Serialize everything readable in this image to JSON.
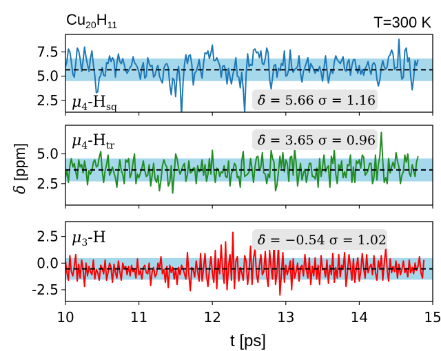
{
  "figure": {
    "title_left_main": "Cu",
    "title_left_sub1": "20",
    "title_left_mid": "H",
    "title_left_sub2": "11",
    "title_right": "T=300 K",
    "ylabel_delta": "δ",
    "ylabel_unit": "[ppm]",
    "xlabel": "t [ps]",
    "band_color": "#a6d8ec",
    "mean_line_color": "#000000"
  },
  "chart_data": [
    {
      "type": "line",
      "label_main": "μ",
      "label_sub": "4",
      "label_rest": "-H",
      "label_subscript": "sq",
      "stat_delta": "δ̄",
      "stat_text": " = 5.66 σ = 1.16",
      "mean": 5.66,
      "sigma": 1.16,
      "color": "#1f77b4",
      "ylim": [
        1.3,
        9.3
      ],
      "yticks": [
        2.5,
        5.0,
        7.5
      ],
      "ytick_labels": [
        "2.5",
        "5.0",
        "7.5"
      ],
      "xlim": [
        10,
        15
      ],
      "x_start": 10.0,
      "x_step": 0.02,
      "values": [
        6.0,
        6.5,
        7.8,
        7.5,
        6.5,
        5.2,
        4.9,
        6.3,
        7.9,
        7.6,
        6.8,
        5.5,
        6.6,
        8.0,
        7.0,
        6.2,
        5.5,
        6.8,
        7.6,
        6.2,
        5.1,
        3.3,
        3.4,
        4.8,
        5.1,
        5.9,
        5.1,
        5.0,
        6.4,
        6.3,
        7.1,
        6.5,
        6.9,
        6.6,
        4.9,
        6.3,
        7.3,
        6.5,
        6.3,
        6.8,
        6.2,
        5.6,
        5.3,
        5.6,
        5.9,
        6.1,
        7.0,
        6.4,
        6.2,
        5.9,
        5.4,
        4.7,
        5.9,
        6.4,
        4.8,
        5.0,
        6.9,
        6.3,
        6.0,
        6.1,
        4.9,
        5.1,
        5.8,
        6.1,
        5.0,
        4.6,
        4.3,
        5.8,
        6.2,
        6.3,
        5.9,
        4.1,
        3.1,
        4.8,
        4.6,
        2.9,
        5.2,
        6.0,
        4.4,
        1.0,
        4.3,
        6.2,
        7.2,
        6.3,
        7.1,
        7.2,
        6.2,
        4.1,
        5.3,
        5.5,
        6.0,
        6.7,
        5.6,
        4.8,
        6.3,
        7.4,
        7.3,
        7.6,
        6.8,
        7.4,
        8.2,
        6.6,
        6.6,
        6.9,
        6.5,
        6.1,
        4.9,
        6.0,
        6.1,
        5.6,
        4.2,
        5.8,
        4.9,
        4.2,
        5.2,
        5.8,
        6.9,
        5.0,
        4.9,
        3.8,
        5.4,
        3.7,
        1.3,
        5.2,
        7.3,
        6.0,
        6.2,
        6.1,
        7.7,
        7.8,
        7.4,
        7.5,
        6.9,
        7.6,
        6.3,
        6.2,
        6.8,
        7.9,
        7.4,
        4.7,
        3.7,
        4.9,
        6.1,
        6.2,
        4.9,
        5.8,
        5.6,
        6.3,
        6.1,
        7.6,
        5.0,
        5.1,
        5.7,
        7.7,
        5.9,
        5.4,
        5.7,
        5.8,
        6.0,
        7.1,
        5.3,
        4.4,
        5.5,
        5.9,
        6.4,
        6.9,
        5.4,
        6.3,
        6.0,
        5.7,
        5.3,
        5.7,
        5.5,
        6.0,
        5.4,
        4.5,
        5.8,
        7.1,
        5.7,
        4.3,
        5.2,
        5.7,
        5.3,
        6.5,
        7.1,
        6.7,
        6.5,
        6.3,
        6.6,
        7.0,
        5.7,
        5.5,
        6.4,
        6.7,
        5.1,
        6.1,
        6.7,
        6.7,
        5.8,
        5.3,
        6.1,
        5.2,
        5.7,
        5.1,
        5.7,
        6.1,
        6.5,
        5.7,
        5.2,
        6.2,
        6.4,
        6.1,
        4.7,
        4.0,
        4.6,
        5.9,
        6.6,
        6.0,
        5.7,
        6.0,
        7.0,
        7.2,
        7.7,
        7.3,
        5.7,
        5.9,
        5.9,
        8.8,
        6.0,
        4.7,
        4.9,
        7.6,
        7.9,
        6.5,
        6.9,
        5.0,
        3.6,
        4.8,
        6.6,
        6.1,
        6.7
      ]
    },
    {
      "type": "line",
      "label_main": "μ",
      "label_sub": "4",
      "label_rest": "-H",
      "label_subscript": "tr",
      "stat_delta": "δ̄",
      "stat_text": " = 3.65 σ = 0.96",
      "mean": 3.65,
      "sigma": 0.96,
      "color": "#228b22",
      "ylim": [
        0.7,
        7.4
      ],
      "yticks": [
        2.5,
        5.0
      ],
      "ytick_labels": [
        "2.5",
        "5.0"
      ],
      "xlim": [
        10,
        15
      ],
      "x_start": 10.0,
      "x_step": 0.02,
      "values": [
        3.0,
        3.6,
        2.6,
        4.0,
        4.6,
        3.9,
        4.2,
        3.5,
        2.9,
        4.5,
        3.9,
        4.1,
        3.4,
        4.4,
        3.7,
        2.4,
        3.6,
        3.3,
        3.6,
        4.3,
        4.5,
        3.9,
        4.0,
        4.7,
        5.2,
        3.6,
        2.6,
        3.6,
        4.1,
        4.9,
        3.2,
        3.5,
        3.9,
        3.4,
        3.0,
        2.2,
        3.6,
        4.5,
        3.6,
        3.3,
        2.5,
        4.5,
        4.3,
        4.6,
        3.0,
        3.4,
        4.3,
        5.0,
        2.5,
        3.3,
        3.0,
        3.4,
        3.8,
        4.4,
        3.6,
        3.1,
        3.2,
        4.1,
        2.3,
        3.2,
        4.2,
        2.9,
        2.6,
        3.2,
        1.9,
        2.8,
        4.0,
        4.5,
        4.1,
        3.9,
        2.3,
        2.6,
        4.0,
        1.7,
        3.3,
        5.0,
        4.6,
        3.8,
        3.3,
        3.6,
        4.0,
        4.2,
        2.7,
        3.3,
        4.4,
        3.4,
        3.5,
        3.8,
        3.8,
        2.5,
        4.0,
        3.5,
        3.6,
        4.5,
        3.2,
        4.1,
        2.7,
        3.3,
        4.6,
        3.3,
        5.3,
        3.6,
        2.6,
        3.8,
        3.7,
        3.1,
        3.5,
        3.4,
        4.0,
        3.1,
        3.0,
        4.4,
        2.3,
        3.4,
        3.6,
        4.2,
        4.0,
        3.0,
        3.1,
        2.2,
        4.4,
        5.2,
        3.1,
        3.2,
        3.3,
        3.5,
        4.6,
        3.7,
        2.6,
        3.9,
        4.7,
        4.8,
        3.6,
        3.9,
        5.1,
        3.4,
        3.3,
        2.5,
        3.3,
        3.0,
        5.3,
        4.6,
        4.3,
        1.9,
        2.4,
        3.5,
        4.8,
        3.8,
        5.1,
        3.5,
        4.5,
        4.2,
        2.7,
        4.7,
        4.8,
        3.2,
        5.4,
        4.3,
        2.3,
        3.3,
        4.2,
        2.8,
        3.4,
        3.7,
        2.6,
        3.4,
        4.2,
        4.2,
        3.1,
        3.1,
        2.9,
        3.8,
        2.2,
        4.6,
        3.1,
        3.9,
        4.9,
        3.5,
        3.8,
        4.0,
        2.2,
        4.8,
        4.2,
        5.3,
        3.3,
        2.5,
        4.1,
        3.6,
        4.4,
        3.0,
        3.5,
        3.0,
        4.1,
        4.0,
        4.9,
        2.6,
        3.9,
        2.6,
        4.4,
        4.2,
        4.5,
        3.8,
        4.9,
        4.7,
        3.2,
        3.4,
        3.6,
        4.2,
        4.2,
        2.5,
        3.0,
        4.9,
        2.8,
        4.1,
        4.8,
        6.8,
        4.4,
        2.6,
        3.0,
        2.5,
        4.6,
        3.4,
        3.9,
        4.3,
        3.8,
        5.1,
        4.4,
        3.9,
        2.5,
        3.2,
        3.5,
        4.9,
        4.3,
        5.0,
        3.4,
        3.1,
        4.1,
        3.6,
        3.1,
        4.3,
        4.8
      ]
    },
    {
      "type": "line",
      "label_main": "μ",
      "label_sub": "3",
      "label_rest": "-H",
      "label_subscript": "",
      "stat_delta": "δ̄",
      "stat_text": " = −0.54 σ = 1.02",
      "mean": -0.54,
      "sigma": 1.02,
      "color": "#ff0000",
      "ylim": [
        -3.6,
        3.9
      ],
      "yticks": [
        -2.5,
        0.0,
        2.5
      ],
      "ytick_labels": [
        "-2.5",
        "0.0",
        "2.5"
      ],
      "xlim": [
        10,
        15
      ],
      "x_start": 10.0,
      "x_step": 0.02,
      "values": [
        0.2,
        -0.9,
        -1.6,
        0.7,
        -0.8,
        -1.2,
        -0.3,
        0.8,
        -1.7,
        -0.1,
        -1.4,
        0.3,
        -0.6,
        -2.2,
        0.0,
        -1.2,
        -0.3,
        -0.8,
        -1.1,
        0.3,
        -1.5,
        -0.6,
        -0.9,
        -1.6,
        -0.2,
        -0.5,
        -1.0,
        0.3,
        -1.6,
        -0.9,
        0.0,
        -0.4,
        -1.8,
        -0.1,
        -0.9,
        -1.4,
        0.2,
        -0.8,
        -1.6,
        0.0,
        -0.5,
        -0.3,
        -1.1,
        -0.3,
        -1.2,
        -0.2,
        -0.8,
        -0.6,
        -1.4,
        0.4,
        -1.1,
        -0.7,
        -1.5,
        -0.4,
        -0.2,
        -0.9,
        -1.0,
        0.0,
        -2.1,
        -0.8,
        -0.4,
        -1.3,
        -1.0,
        0.0,
        -0.5,
        0.6,
        -1.0,
        -0.6,
        -1.8,
        -0.3,
        -2.3,
        -0.2,
        -0.9,
        -0.4,
        -1.5,
        -0.5,
        -2.0,
        -0.4,
        -1.1,
        -0.2,
        -0.5,
        -1.0,
        -1.5,
        1.0,
        -1.1,
        -2.6,
        -0.4,
        -0.7,
        -1.3,
        0.2,
        -0.8,
        -1.7,
        0.9,
        -1.7,
        -0.5,
        0.9,
        -1.2,
        -2.2,
        -0.6,
        0.6,
        -0.9,
        -1.8,
        1.2,
        -2.4,
        0.4,
        -1.0,
        1.7,
        -0.7,
        -1.9,
        2.0,
        -2.5,
        -0.3,
        0.8,
        -1.6,
        2.9,
        -2.4,
        0.2,
        0.6,
        -1.7,
        -0.4,
        -0.9,
        -1.6,
        0.7,
        0.2,
        -2.0,
        -0.7,
        1.6,
        -2.0,
        0.4,
        1.4,
        -1.0,
        -1.8,
        -0.2,
        0.8,
        -1.1,
        -0.8,
        1.1,
        -1.2,
        -2.2,
        1.2,
        -0.5,
        -1.5,
        2.1,
        -2.0,
        -0.9,
        1.8,
        -3.0,
        -1.0,
        1.0,
        -1.8,
        -0.2,
        -1.1,
        -0.5,
        0.2,
        -2.5,
        0.4,
        -1.4,
        -0.8,
        0.0,
        -1.7,
        -0.4,
        -0.2,
        -1.2,
        0.8,
        -0.6,
        -1.4,
        0.5,
        -2.0,
        -0.3,
        -1.2,
        0.5,
        -1.5,
        -0.2,
        -2.0,
        0.7,
        -0.6,
        -0.5,
        -1.3,
        0.3,
        -1.9,
        -0.2,
        -1.1,
        0.9,
        -1.8,
        -0.4,
        -1.4,
        0.8,
        -1.3,
        -0.2,
        -0.6,
        1.0,
        -2.2,
        -0.8,
        0.8,
        -0.3,
        -1.6,
        0.4,
        -1.8,
        -0.4,
        0.5,
        -1.7,
        -0.8,
        0.9,
        -0.5,
        -1.4,
        0.8,
        -0.9,
        -0.4,
        -0.1,
        -1.1,
        0.7,
        -0.9,
        -1.6,
        0.2,
        -0.6,
        0.7,
        -1.6,
        -0.1,
        1.4,
        -0.6,
        -1.7,
        0.4,
        -0.9,
        -0.3,
        -0.8,
        0.2,
        -1.4,
        -0.1,
        -1.1,
        -0.6,
        0.2,
        -0.9,
        -0.5,
        -1.3,
        0.3,
        -0.9,
        -0.4,
        -1.0,
        0.0,
        -0.7,
        -0.3,
        0.6,
        -0.9,
        -1.4,
        0.3
      ]
    }
  ],
  "x_axis": {
    "ticks": [
      10,
      11,
      12,
      13,
      14,
      15
    ],
    "tick_labels": [
      "10",
      "11",
      "12",
      "13",
      "14",
      "15"
    ]
  }
}
